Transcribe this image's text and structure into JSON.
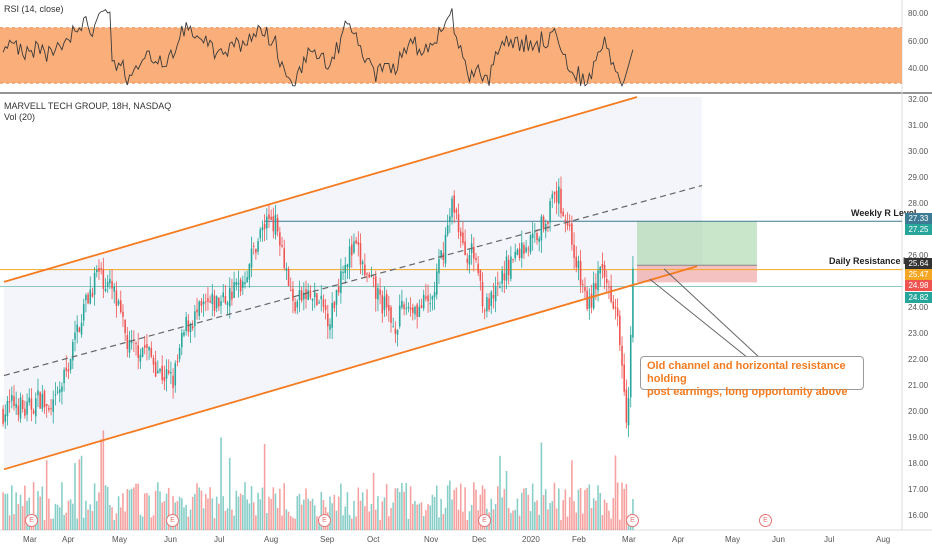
{
  "rsi_title": "RSI (14, close)",
  "chart_title": "MARVELL TECH GROUP, 18H, NASDAQ",
  "volume_label": "Vol (20)",
  "rsi_ticks": [
    "80.00",
    "60.00",
    "40.00"
  ],
  "price_ticks": [
    "32.00",
    "31.00",
    "30.00",
    "29.00",
    "28.00",
    "27.00",
    "26.00",
    "25.00",
    "24.00",
    "23.00",
    "22.00",
    "21.00",
    "20.00",
    "19.00",
    "18.00",
    "17.00",
    "16.00"
  ],
  "x_ticks": [
    "Mar",
    "Apr",
    "May",
    "Jun",
    "Jul",
    "Aug",
    "Sep",
    "Oct",
    "Nov",
    "Dec",
    "2020",
    "Feb",
    "Mar",
    "Apr",
    "May",
    "Jun",
    "Jul",
    "Aug"
  ],
  "price_tags": [
    {
      "text": "27.33",
      "color": "#3d7a93"
    },
    {
      "text": "27.25",
      "color": "#26a69a"
    },
    {
      "text": "25.64",
      "color": "#333333"
    },
    {
      "text": "25.47",
      "color": "#f5a623"
    },
    {
      "text": "24.98",
      "color": "#ef5350"
    },
    {
      "text": "24.82",
      "color": "#26a69a"
    }
  ],
  "annotations": {
    "weekly": "Weekly R Level",
    "daily": "Daily Resistance level",
    "note_line1": "Old channel and horizontal  resistance holding",
    "note_line2": "post earnings, long opportunity above"
  },
  "earnings_marker": "E",
  "colors": {
    "up": "#26a69a",
    "down": "#ef5350",
    "channel": "#f47b20",
    "rsi_band": "#f9a66c",
    "weekly_line": "#3d7a93",
    "daily_line": "#f5a623"
  },
  "chart_data": {
    "type": "candlestick",
    "title": "MARVELL TECH GROUP, 18H, NASDAQ",
    "y_range": [
      15.7,
      32.1
    ],
    "rsi_range": [
      25,
      90
    ],
    "levels": {
      "weekly_resistance": 27.33,
      "daily_resistance": 25.47,
      "last_close": 25.64
    },
    "price_path": [
      [
        0,
        20.0
      ],
      [
        0.02,
        20.4
      ],
      [
        0.035,
        20.0
      ],
      [
        0.06,
        20.6
      ],
      [
        0.075,
        19.8
      ],
      [
        0.1,
        21.5
      ],
      [
        0.125,
        23.8
      ],
      [
        0.15,
        25.4
      ],
      [
        0.175,
        24.6
      ],
      [
        0.2,
        22.4
      ],
      [
        0.225,
        22.5
      ],
      [
        0.25,
        21.5
      ],
      [
        0.27,
        21.2
      ],
      [
        0.29,
        23.3
      ],
      [
        0.32,
        24.0
      ],
      [
        0.35,
        24.3
      ],
      [
        0.38,
        25.0
      ],
      [
        0.405,
        26.7
      ],
      [
        0.425,
        27.6
      ],
      [
        0.44,
        26.8
      ],
      [
        0.46,
        24.1
      ],
      [
        0.48,
        24.5
      ],
      [
        0.5,
        24.2
      ],
      [
        0.52,
        23.6
      ],
      [
        0.54,
        25.8
      ],
      [
        0.56,
        26.3
      ],
      [
        0.58,
        25.0
      ],
      [
        0.6,
        24.3
      ],
      [
        0.62,
        23.3
      ],
      [
        0.64,
        24.1
      ],
      [
        0.66,
        24.0
      ],
      [
        0.68,
        24.2
      ],
      [
        0.7,
        26.4
      ],
      [
        0.715,
        28.2
      ],
      [
        0.73,
        26.2
      ],
      [
        0.75,
        26.0
      ],
      [
        0.765,
        24.0
      ],
      [
        0.78,
        24.3
      ],
      [
        0.8,
        25.6
      ],
      [
        0.82,
        26.2
      ],
      [
        0.84,
        26.6
      ],
      [
        0.86,
        27.4
      ],
      [
        0.88,
        28.4
      ],
      [
        0.9,
        27.0
      ],
      [
        0.915,
        25.2
      ],
      [
        0.93,
        24.0
      ],
      [
        0.945,
        25.3
      ],
      [
        0.96,
        24.9
      ],
      [
        0.975,
        24.1
      ],
      [
        0.985,
        21.5
      ],
      [
        0.99,
        19.9
      ],
      [
        0.995,
        21.6
      ],
      [
        1.0,
        25.6
      ]
    ]
  }
}
